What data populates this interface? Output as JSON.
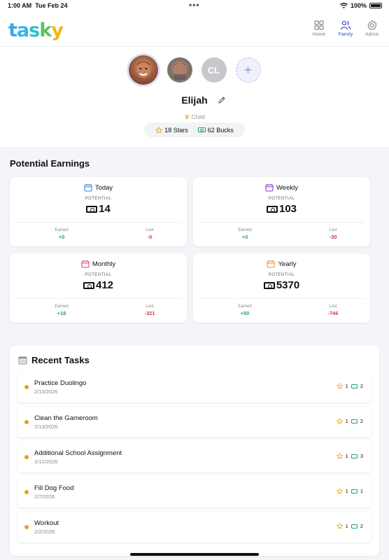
{
  "status_bar": {
    "time": "1:00 AM",
    "date": "Tue Feb 24",
    "battery": "100%"
  },
  "app": {
    "logo_text": "tasky"
  },
  "nav": [
    {
      "label": "Home",
      "icon": "grid-icon",
      "active": false
    },
    {
      "label": "Family",
      "icon": "people-icon",
      "active": true
    },
    {
      "label": "Admin",
      "icon": "gear-icon",
      "active": false
    }
  ],
  "profile": {
    "avatars": [
      {
        "type": "photo",
        "selected": true
      },
      {
        "type": "photo",
        "selected": false
      },
      {
        "type": "initials",
        "initials": "CL"
      },
      {
        "type": "add",
        "symbol": "+"
      }
    ],
    "name": "Elijah",
    "role": "Child",
    "stars": "18 Stars",
    "bucks": "62 Bucks"
  },
  "earnings": {
    "title": "Potential Earnings",
    "potential_label": "POTENTIAL",
    "earned_label": "Earned",
    "lost_label": "Lost",
    "cards": [
      {
        "period": "Today",
        "value": "14",
        "earned": "+0",
        "lost": "-0",
        "color": "#3b82d6"
      },
      {
        "period": "Weekly",
        "value": "103",
        "earned": "+0",
        "lost": "-30",
        "color": "#8b3fd9"
      },
      {
        "period": "Monthly",
        "value": "412",
        "earned": "+18",
        "lost": "-321",
        "color": "#e0457b"
      },
      {
        "period": "Yearly",
        "value": "5370",
        "earned": "+50",
        "lost": "-746",
        "color": "#f0962c"
      }
    ]
  },
  "recent_tasks": {
    "title": "Recent Tasks",
    "items": [
      {
        "name": "Practice Duolingo",
        "date": "2/13/2026",
        "stars": "1",
        "bucks": "2"
      },
      {
        "name": "Clean the Gameroom",
        "date": "2/13/2026",
        "stars": "1",
        "bucks": "2"
      },
      {
        "name": "Additional School Assignment",
        "date": "2/12/2026",
        "stars": "1",
        "bucks": "3"
      },
      {
        "name": "Fill Dog Food",
        "date": "2/7/2026",
        "stars": "1",
        "bucks": "1"
      },
      {
        "name": "Workout",
        "date": "2/2/2026",
        "stars": "1",
        "bucks": "2"
      }
    ]
  }
}
